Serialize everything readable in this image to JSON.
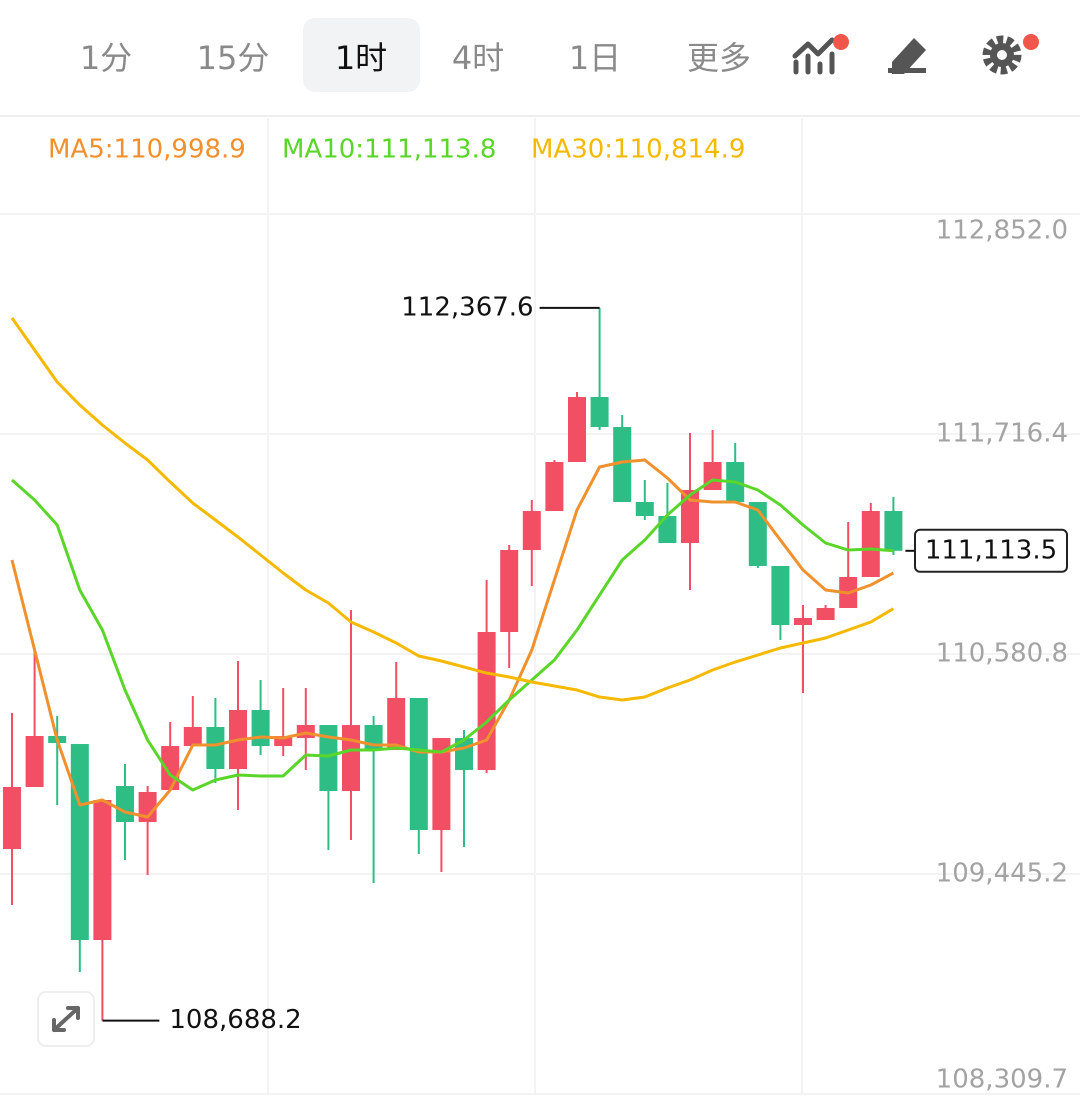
{
  "tabs": [
    "1分",
    "15分",
    "1时",
    "4时",
    "1日",
    "更多"
  ],
  "chart_data": {
    "type": "candlestick",
    "ylim": [
      108309.7,
      112852.0
    ],
    "yticks": [
      {
        "value": 108309.7,
        "label": "108,309.7"
      },
      {
        "value": 109445.2,
        "label": "109,445.2"
      },
      {
        "value": 110580.8,
        "label": "110,580.8"
      },
      {
        "value": 111716.4,
        "label": "111,716.4"
      },
      {
        "value": 112852.0,
        "label": "112,852.0"
      }
    ],
    "grid": true,
    "up_color": "#f24e64",
    "down_color": "#2ebd85",
    "candles": {
      "open": [
        109574.3,
        109894.3,
        110157.5,
        110116.2,
        109104.5,
        109899.4,
        109713.6,
        109878.8,
        110105.9,
        110204.0,
        109987.2,
        110291.7,
        110105.9,
        110147.2,
        110214.3,
        109873.6,
        110214.3,
        110085.3,
        110353.7,
        109672.3,
        110147.2,
        109982.0,
        110694.4,
        111117.6,
        111318.9,
        111571.9,
        111907.4,
        111752.5,
        111365.4,
        111293.1,
        111153.8,
        111427.3,
        111571.9,
        111365.4,
        111035.1,
        110730.5,
        110756.3,
        110818.3,
        110978.3,
        111318.9
      ],
      "high": [
        110276.3,
        110591.1,
        110260.8,
        110116.2,
        109827.2,
        110013.0,
        109899.4,
        110229.8,
        110364.0,
        110353.7,
        110544.7,
        110446.6,
        110405.3,
        110405.3,
        110214.3,
        110807.9,
        110260.8,
        110539.5,
        110353.7,
        110147.2,
        110188.5,
        110962.8,
        111143.4,
        111375.7,
        111582.2,
        111933.2,
        112367.6,
        111814.5,
        111479.0,
        111463.5,
        111721.6,
        111737.0,
        111669.9,
        111365.4,
        111035.1,
        110833.7,
        110833.7,
        111262.2,
        111360.2,
        111391.2
      ],
      "low": [
        109285.2,
        109894.3,
        109801.4,
        108939.4,
        108688.2,
        109517.5,
        109440.0,
        109878.8,
        110105.9,
        109914.9,
        109775.6,
        110059.5,
        110054.3,
        109982.0,
        109569.1,
        109620.7,
        109398.8,
        110085.3,
        109548.4,
        109455.5,
        109584.6,
        109966.5,
        110508.5,
        110931.8,
        111318.9,
        111571.9,
        111737.0,
        111365.4,
        111272.5,
        111153.8,
        110911.2,
        111427.3,
        111365.4,
        111024.7,
        110653.1,
        110379.5,
        110756.3,
        110818.3,
        110978.3,
        111091.8
      ],
      "close": [
        109894.3,
        110157.5,
        110121.4,
        109104.5,
        109827.2,
        109713.6,
        109868.5,
        110105.9,
        110204.0,
        109987.2,
        110291.7,
        110105.9,
        110157.5,
        110214.3,
        109873.6,
        110214.3,
        110085.3,
        110353.7,
        109672.3,
        110147.2,
        109982.0,
        110694.4,
        111117.6,
        111318.9,
        111571.9,
        111907.4,
        111752.5,
        111365.4,
        111293.1,
        111153.8,
        111427.3,
        111571.9,
        111365.4,
        111035.1,
        110730.5,
        110766.6,
        110818.3,
        110978.3,
        111318.9,
        111113.5
      ]
    },
    "series": [
      {
        "name": "MA5:110,998.9",
        "color": "#f0912e",
        "values": [
          111066.0,
          110601.5,
          110136.9,
          109801.4,
          109827.2,
          109765.2,
          109739.4,
          109878.8,
          110111.1,
          110111.1,
          110136.9,
          110152.4,
          110147.2,
          110173.0,
          110152.4,
          110136.9,
          110111.1,
          110111.1,
          110074.9,
          110074.9,
          110095.6,
          110136.9,
          110343.4,
          110601.5,
          110962.8,
          111324.1,
          111546.1,
          111571.9,
          111582.2,
          111489.3,
          111375.7,
          111365.4,
          111365.4,
          111324.1,
          111169.3,
          111014.4,
          110911.2,
          110895.7,
          110937.0,
          110998.9
        ]
      },
      {
        "name": "MA10:111,113.8",
        "color": "#5ad62a",
        "values": [
          111479.0,
          111375.7,
          111246.7,
          110911.2,
          110704.7,
          110395.0,
          110136.9,
          109956.2,
          109878.8,
          109930.4,
          109956.2,
          109951.1,
          109951.1,
          110059.5,
          110054.3,
          110085.3,
          110085.3,
          110095.6,
          110085.3,
          110074.9,
          110136.9,
          110229.8,
          110343.4,
          110446.6,
          110549.8,
          110704.7,
          110885.4,
          111066.0,
          111169.3,
          111298.3,
          111401.5,
          111479.0,
          111468.6,
          111427.3,
          111349.9,
          111246.7,
          111153.8,
          111117.6,
          111122.8,
          111113.8
        ]
      },
      {
        "name": "MA30:110,814.9",
        "color": "#f5b900",
        "values": [
          112315.2,
          112150.0,
          111984.8,
          111866.1,
          111762.9,
          111669.9,
          111582.2,
          111468.6,
          111360.2,
          111272.5,
          111184.7,
          111091.8,
          110998.9,
          110911.2,
          110844.1,
          110746.0,
          110694.4,
          110637.6,
          110570.5,
          110544.7,
          110513.7,
          110482.7,
          110462.1,
          110436.3,
          110415.6,
          110395.0,
          110358.8,
          110343.4,
          110358.8,
          110405.3,
          110446.6,
          110498.2,
          110539.5,
          110575.6,
          110611.8,
          110637.6,
          110663.4,
          110704.7,
          110746.0,
          110814.9
        ]
      }
    ],
    "annotations": [
      {
        "value": 112367.6,
        "label": "112,367.6"
      },
      {
        "value": 108688.2,
        "label": "108,688.2"
      }
    ],
    "last_price": {
      "value": 111113.5,
      "label": "111,113.5"
    }
  }
}
